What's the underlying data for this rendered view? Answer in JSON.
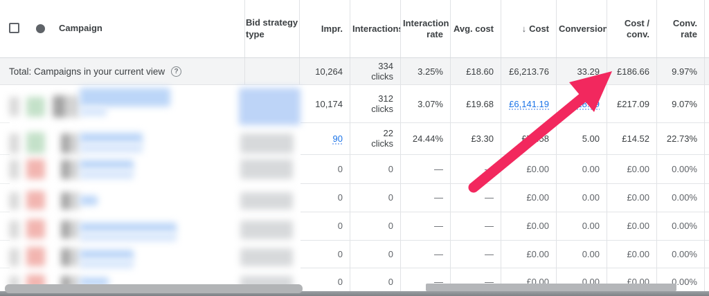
{
  "table": {
    "header": {
      "campaign_label": "Campaign",
      "bid_strategy_label": "Bid strategy type",
      "sort_icon": "↓",
      "metric_columns": [
        {
          "id": "impr",
          "label": "Impr.",
          "sorted": false
        },
        {
          "id": "interactions",
          "label": "Interactions",
          "sorted": false
        },
        {
          "id": "interaction-rate",
          "label": "Interaction rate",
          "sorted": false
        },
        {
          "id": "avg-cost",
          "label": "Avg. cost",
          "sorted": false
        },
        {
          "id": "cost",
          "label": "Cost",
          "sorted": true
        },
        {
          "id": "conversions",
          "label": "Conversions",
          "sorted": false
        },
        {
          "id": "cost-per-conv",
          "label": "Cost / conv.",
          "sorted": false
        },
        {
          "id": "conv-rate",
          "label": "Conv. rate",
          "sorted": false
        }
      ]
    },
    "total_row": {
      "label": "Total: Campaigns in your current view",
      "help_icon": "?",
      "cells": [
        {
          "v": "10,264"
        },
        {
          "v": "334",
          "sub": "clicks"
        },
        {
          "v": "3.25%"
        },
        {
          "v": "£18.60"
        },
        {
          "v": "£6,213.76"
        },
        {
          "v": "33.29"
        },
        {
          "v": "£186.66"
        },
        {
          "v": "9.97%"
        }
      ]
    },
    "rows": [
      {
        "status": "enabled-green",
        "cells": [
          {
            "v": "10,174"
          },
          {
            "v": "312",
            "sub": "clicks"
          },
          {
            "v": "3.07%"
          },
          {
            "v": "£19.68"
          },
          {
            "v": "£6,141.19",
            "link": true
          },
          {
            "v": "28.29",
            "link": true
          },
          {
            "v": "£217.09"
          },
          {
            "v": "9.07%"
          }
        ]
      },
      {
        "status": "enabled-green",
        "cells": [
          {
            "v": "90",
            "link": true
          },
          {
            "v": "22",
            "sub": "clicks"
          },
          {
            "v": "24.44%"
          },
          {
            "v": "£3.30"
          },
          {
            "v": "£72.58"
          },
          {
            "v": "5.00"
          },
          {
            "v": "£14.52"
          },
          {
            "v": "22.73%"
          }
        ]
      },
      {
        "status": "paused-red",
        "cells": [
          {
            "v": "0"
          },
          {
            "v": "0"
          },
          {
            "v": "—"
          },
          {
            "v": "—"
          },
          {
            "v": "£0.00"
          },
          {
            "v": "0.00"
          },
          {
            "v": "£0.00"
          },
          {
            "v": "0.00%"
          }
        ]
      },
      {
        "status": "paused-red",
        "cells": [
          {
            "v": "0"
          },
          {
            "v": "0"
          },
          {
            "v": "—"
          },
          {
            "v": "—"
          },
          {
            "v": "£0.00"
          },
          {
            "v": "0.00"
          },
          {
            "v": "£0.00"
          },
          {
            "v": "0.00%"
          }
        ]
      },
      {
        "status": "paused-red",
        "cells": [
          {
            "v": "0"
          },
          {
            "v": "0"
          },
          {
            "v": "—"
          },
          {
            "v": "—"
          },
          {
            "v": "£0.00"
          },
          {
            "v": "0.00"
          },
          {
            "v": "£0.00"
          },
          {
            "v": "0.00%"
          }
        ]
      },
      {
        "status": "paused-red",
        "cells": [
          {
            "v": "0"
          },
          {
            "v": "0"
          },
          {
            "v": "—"
          },
          {
            "v": "—"
          },
          {
            "v": "£0.00"
          },
          {
            "v": "0.00"
          },
          {
            "v": "£0.00"
          },
          {
            "v": "0.00%"
          }
        ]
      },
      {
        "status": "paused-red",
        "cells": [
          {
            "v": "0"
          },
          {
            "v": "0"
          },
          {
            "v": "—"
          },
          {
            "v": "—"
          },
          {
            "v": "£0.00"
          },
          {
            "v": "0.00"
          },
          {
            "v": "£0.00"
          },
          {
            "v": "0.00%"
          }
        ]
      }
    ]
  },
  "colors": {
    "link": "#1a73e8",
    "arrow": "#f2285e",
    "total_row_bg": "#f3f4f5",
    "header_text": "#3c4043",
    "blur_green": "#c4e1c9",
    "blur_red": "#f2b5b0",
    "blur_blue_text": "#bcd6f8",
    "blur_blue_light": "#d7e6fb",
    "blur_bid_blue": "#bdd4f7",
    "blur_gray": "#d7d9db",
    "blur_checkbox": "#dadada",
    "blur_icon_dark": "#a3a3a3",
    "blur_icon_light": "#d4d4d4"
  }
}
